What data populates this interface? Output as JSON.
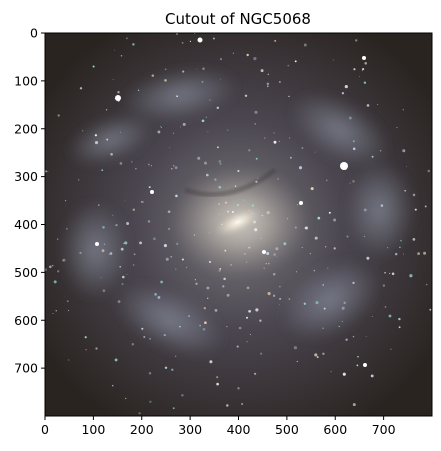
{
  "figure": {
    "title": "Cutout of NGC5068"
  },
  "axes": {
    "x": {
      "range": [
        0,
        800
      ],
      "ticks": [
        "0",
        "100",
        "200",
        "300",
        "400",
        "500",
        "600",
        "700"
      ]
    },
    "y": {
      "range": [
        0,
        800
      ],
      "ticks": [
        "0",
        "100",
        "200",
        "300",
        "400",
        "500",
        "600",
        "700"
      ],
      "inverted": true
    }
  },
  "image": {
    "subject": "spiral-galaxy",
    "colors": {
      "background": "#2a2421",
      "core": "#f4eee0",
      "arms": "#8d97a8",
      "hii_regions": "#9fe6dc"
    }
  }
}
